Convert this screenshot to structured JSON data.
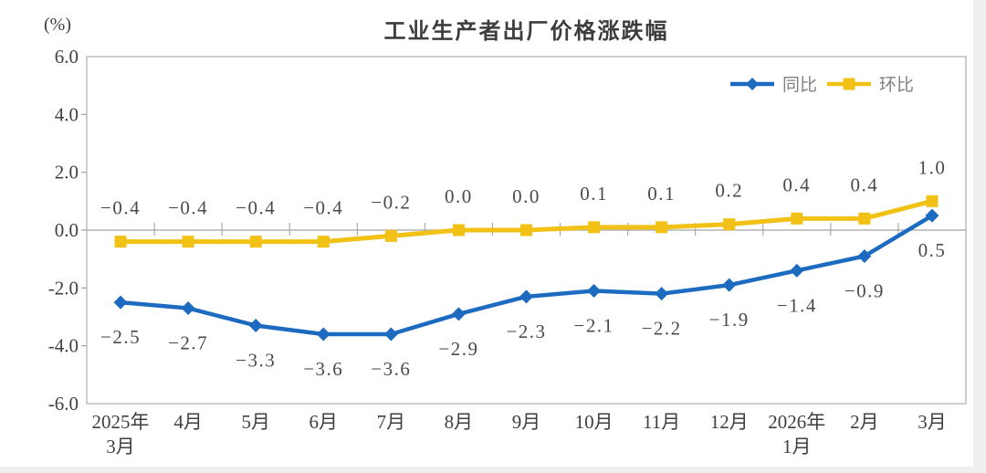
{
  "chart_data": {
    "type": "line",
    "title": "工业生产者出厂价格涨跌幅",
    "y_unit_label": "(%)",
    "categories": [
      "2025年\n3月",
      "4月",
      "5月",
      "6月",
      "7月",
      "8月",
      "9月",
      "10月",
      "11月",
      "12月",
      "2026年\n1月",
      "2月",
      "3月"
    ],
    "series": [
      {
        "name": "同比",
        "marker": "diamond",
        "color": "#1c6bc0",
        "values": [
          -2.5,
          -2.7,
          -3.3,
          -3.6,
          -3.6,
          -2.9,
          -2.3,
          -2.1,
          -2.2,
          -1.9,
          -1.4,
          -0.9,
          0.5
        ],
        "labels": [
          "-2.5",
          "-2.7",
          "-3.3",
          "-3.6",
          "-3.6",
          "-2.9",
          "-2.3",
          "-2.1",
          "-2.2",
          "-1.9",
          "-1.4",
          "-0.9",
          "0.5"
        ]
      },
      {
        "name": "环比",
        "marker": "square",
        "color": "#f2c116",
        "values": [
          -0.4,
          -0.4,
          -0.4,
          -0.4,
          -0.2,
          0.0,
          0.0,
          0.1,
          0.1,
          0.2,
          0.4,
          0.4,
          1.0
        ],
        "labels": [
          "-0.4",
          "-0.4",
          "-0.4",
          "-0.4",
          "-0.2",
          "0.0",
          "0.0",
          "0.1",
          "0.1",
          "0.2",
          "0.4",
          "0.4",
          "1.0"
        ]
      }
    ],
    "ylim": [
      -6,
      6
    ],
    "ytick_values": [
      6,
      4,
      2,
      0,
      -2,
      -4,
      -6
    ],
    "ytick_labels": [
      "6.0",
      "4.0",
      "2.0",
      "0.0",
      "-2.0",
      "-4.0",
      "-6.0"
    ],
    "legend_position": "top-right",
    "grid": false
  },
  "colors": {
    "plot_border": "#bfbfbf",
    "zero_line": "#a3a3a3",
    "tick": "#a3a3a3",
    "axis_text": "#3f3f3f",
    "data_label_text": "#4a4a4a",
    "legend_text": "#808080",
    "background": "#ffffff"
  }
}
